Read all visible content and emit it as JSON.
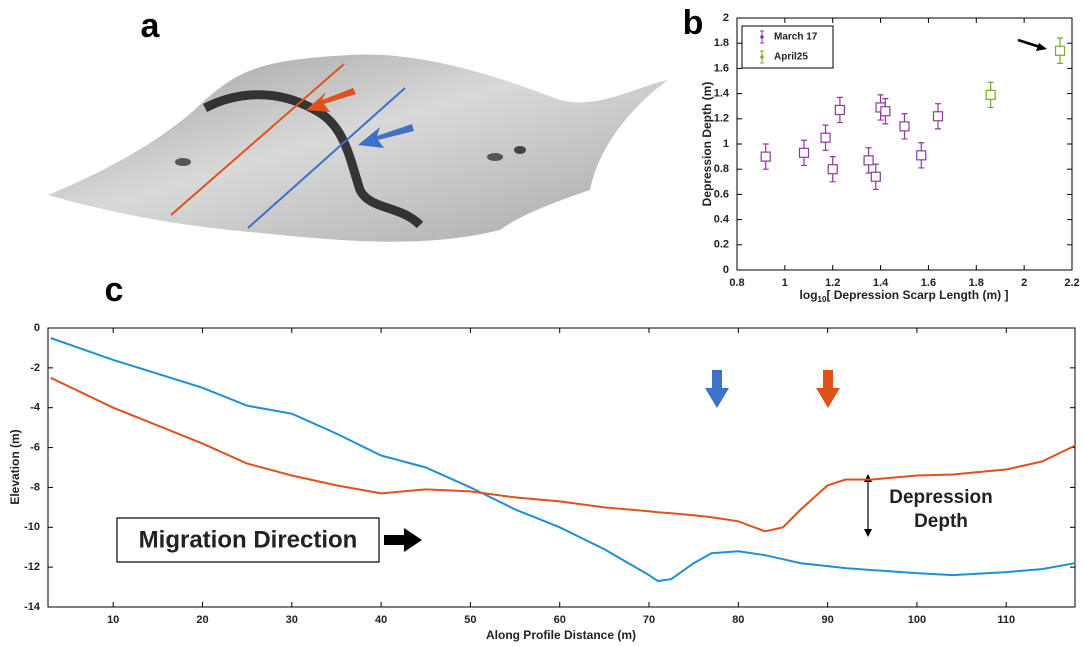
{
  "chart_data": [
    {
      "type": "image",
      "panel_label": "a"
    },
    {
      "type": "scatter",
      "panel_label": "b",
      "xlabel": [
        "log",
        "10",
        "[ Depression Scarp Length (m) ]"
      ],
      "ylabel": "Depression Depth (m)",
      "xlim": [
        0.8,
        2.2
      ],
      "xticks": [
        0.8,
        1,
        1.2,
        1.4,
        1.6,
        1.8,
        2,
        2.2
      ],
      "ylim": [
        0,
        2
      ],
      "yticks": [
        0,
        0.2,
        0.4,
        0.6,
        0.8,
        1,
        1.2,
        1.4,
        1.6,
        1.8,
        2
      ],
      "legend": "upper left",
      "series": [
        {
          "name": "March 17",
          "color": "#8e3a9d",
          "x": [
            0.92,
            1.08,
            1.17,
            1.2,
            1.23,
            1.35,
            1.38,
            1.4,
            1.42,
            1.5,
            1.57,
            1.64
          ],
          "values": [
            0.9,
            0.93,
            1.05,
            0.8,
            1.27,
            0.87,
            0.74,
            1.29,
            1.26,
            1.14,
            0.91,
            1.22
          ],
          "errors": [
            0.1,
            0.1,
            0.1,
            0.1,
            0.1,
            0.1,
            0.1,
            0.1,
            0.1,
            0.1,
            0.1,
            0.1
          ]
        },
        {
          "name": "April25",
          "color": "#77ac30",
          "x": [
            1.86,
            2.15
          ],
          "values": [
            1.39,
            1.74
          ],
          "errors": [
            0.1,
            0.1
          ]
        }
      ]
    },
    {
      "type": "line",
      "panel_label": "c",
      "xlabel": "Along Profile Distance (m)",
      "ylabel": "Elevation (m)",
      "xlim": [
        2.7,
        117.7
      ],
      "xticks": [
        10,
        20,
        30,
        40,
        50,
        60,
        70,
        80,
        90,
        100,
        110
      ],
      "ylim": [
        -14,
        0
      ],
      "yticks": [
        0,
        -2,
        -4,
        -6,
        -8,
        -10,
        -12,
        -14
      ],
      "annotations": [
        "Migration Direction",
        [
          "Depression",
          "Depth"
        ]
      ],
      "x": [
        3,
        10,
        15,
        20,
        25,
        30,
        35,
        40,
        45,
        50,
        55,
        60,
        65,
        70,
        71,
        72.5,
        75,
        77,
        80,
        83,
        85,
        87,
        90,
        92,
        95,
        100,
        104,
        110,
        114,
        117.7
      ],
      "series": [
        {
          "color": "#1f8fd6",
          "values": [
            -0.5,
            -1.6,
            -2.3,
            -3.0,
            -3.9,
            -4.3,
            -5.3,
            -6.4,
            -7.0,
            -8.0,
            -9.1,
            -10.0,
            -11.1,
            -12.4,
            -12.7,
            -12.6,
            -11.8,
            -11.3,
            -11.2,
            -11.4,
            -11.6,
            -11.8,
            -11.95,
            -12.05,
            -12.15,
            -12.3,
            -12.4,
            -12.25,
            -12.1,
            -11.8
          ]
        },
        {
          "color": "#e0521b",
          "values": [
            -2.5,
            -4.0,
            -4.9,
            -5.8,
            -6.8,
            -7.4,
            -7.9,
            -8.3,
            -8.1,
            -8.2,
            -8.5,
            -8.7,
            -9.0,
            -9.2,
            -9.25,
            -9.3,
            -9.4,
            -9.5,
            -9.7,
            -10.2,
            -10.0,
            -9.1,
            -7.9,
            -7.6,
            -7.6,
            -7.4,
            -7.35,
            -7.1,
            -6.7,
            -5.9
          ]
        }
      ]
    }
  ]
}
